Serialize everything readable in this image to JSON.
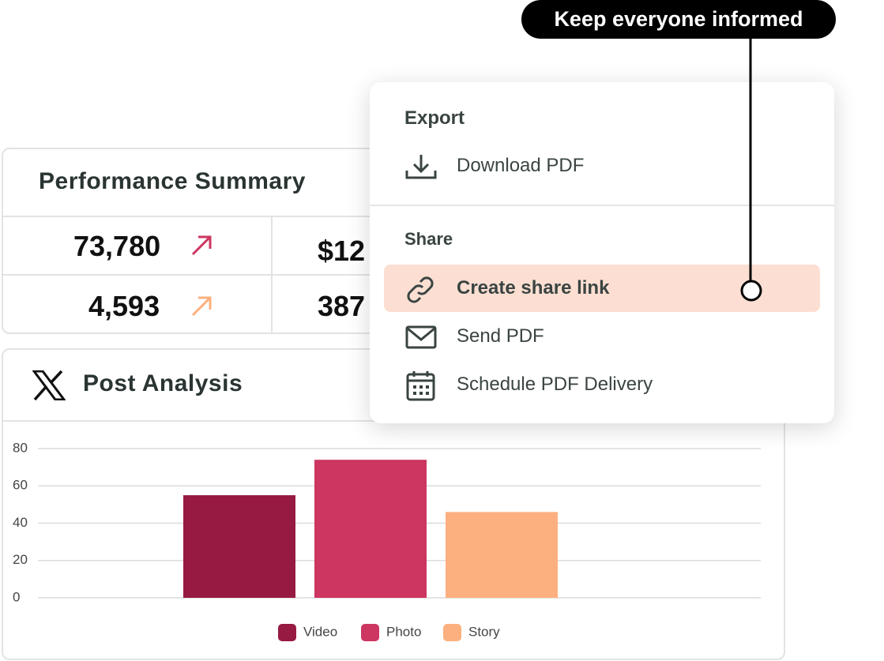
{
  "callout": "Keep everyone informed",
  "summary": {
    "title": "Performance Summary",
    "metrics": [
      "73,780",
      "$12",
      "4,593",
      "387"
    ]
  },
  "menu": {
    "export_heading": "Export",
    "download": "Download PDF",
    "share_heading": "Share",
    "share_link": "Create share link",
    "send": "Send PDF",
    "schedule": "Schedule PDF Delivery"
  },
  "chart_data": {
    "type": "bar",
    "title": "Post Analysis",
    "series": [
      {
        "name": "Video",
        "color": "#961a42",
        "values": [
          55
        ]
      },
      {
        "name": "Photo",
        "color": "#cc3660",
        "values": [
          74
        ]
      },
      {
        "name": "Story",
        "color": "#fdb07f",
        "values": [
          46
        ]
      }
    ],
    "ylim": [
      0,
      80
    ],
    "yticks": [
      0,
      20,
      40,
      60,
      80
    ],
    "grid": true,
    "legend": "bottom"
  }
}
